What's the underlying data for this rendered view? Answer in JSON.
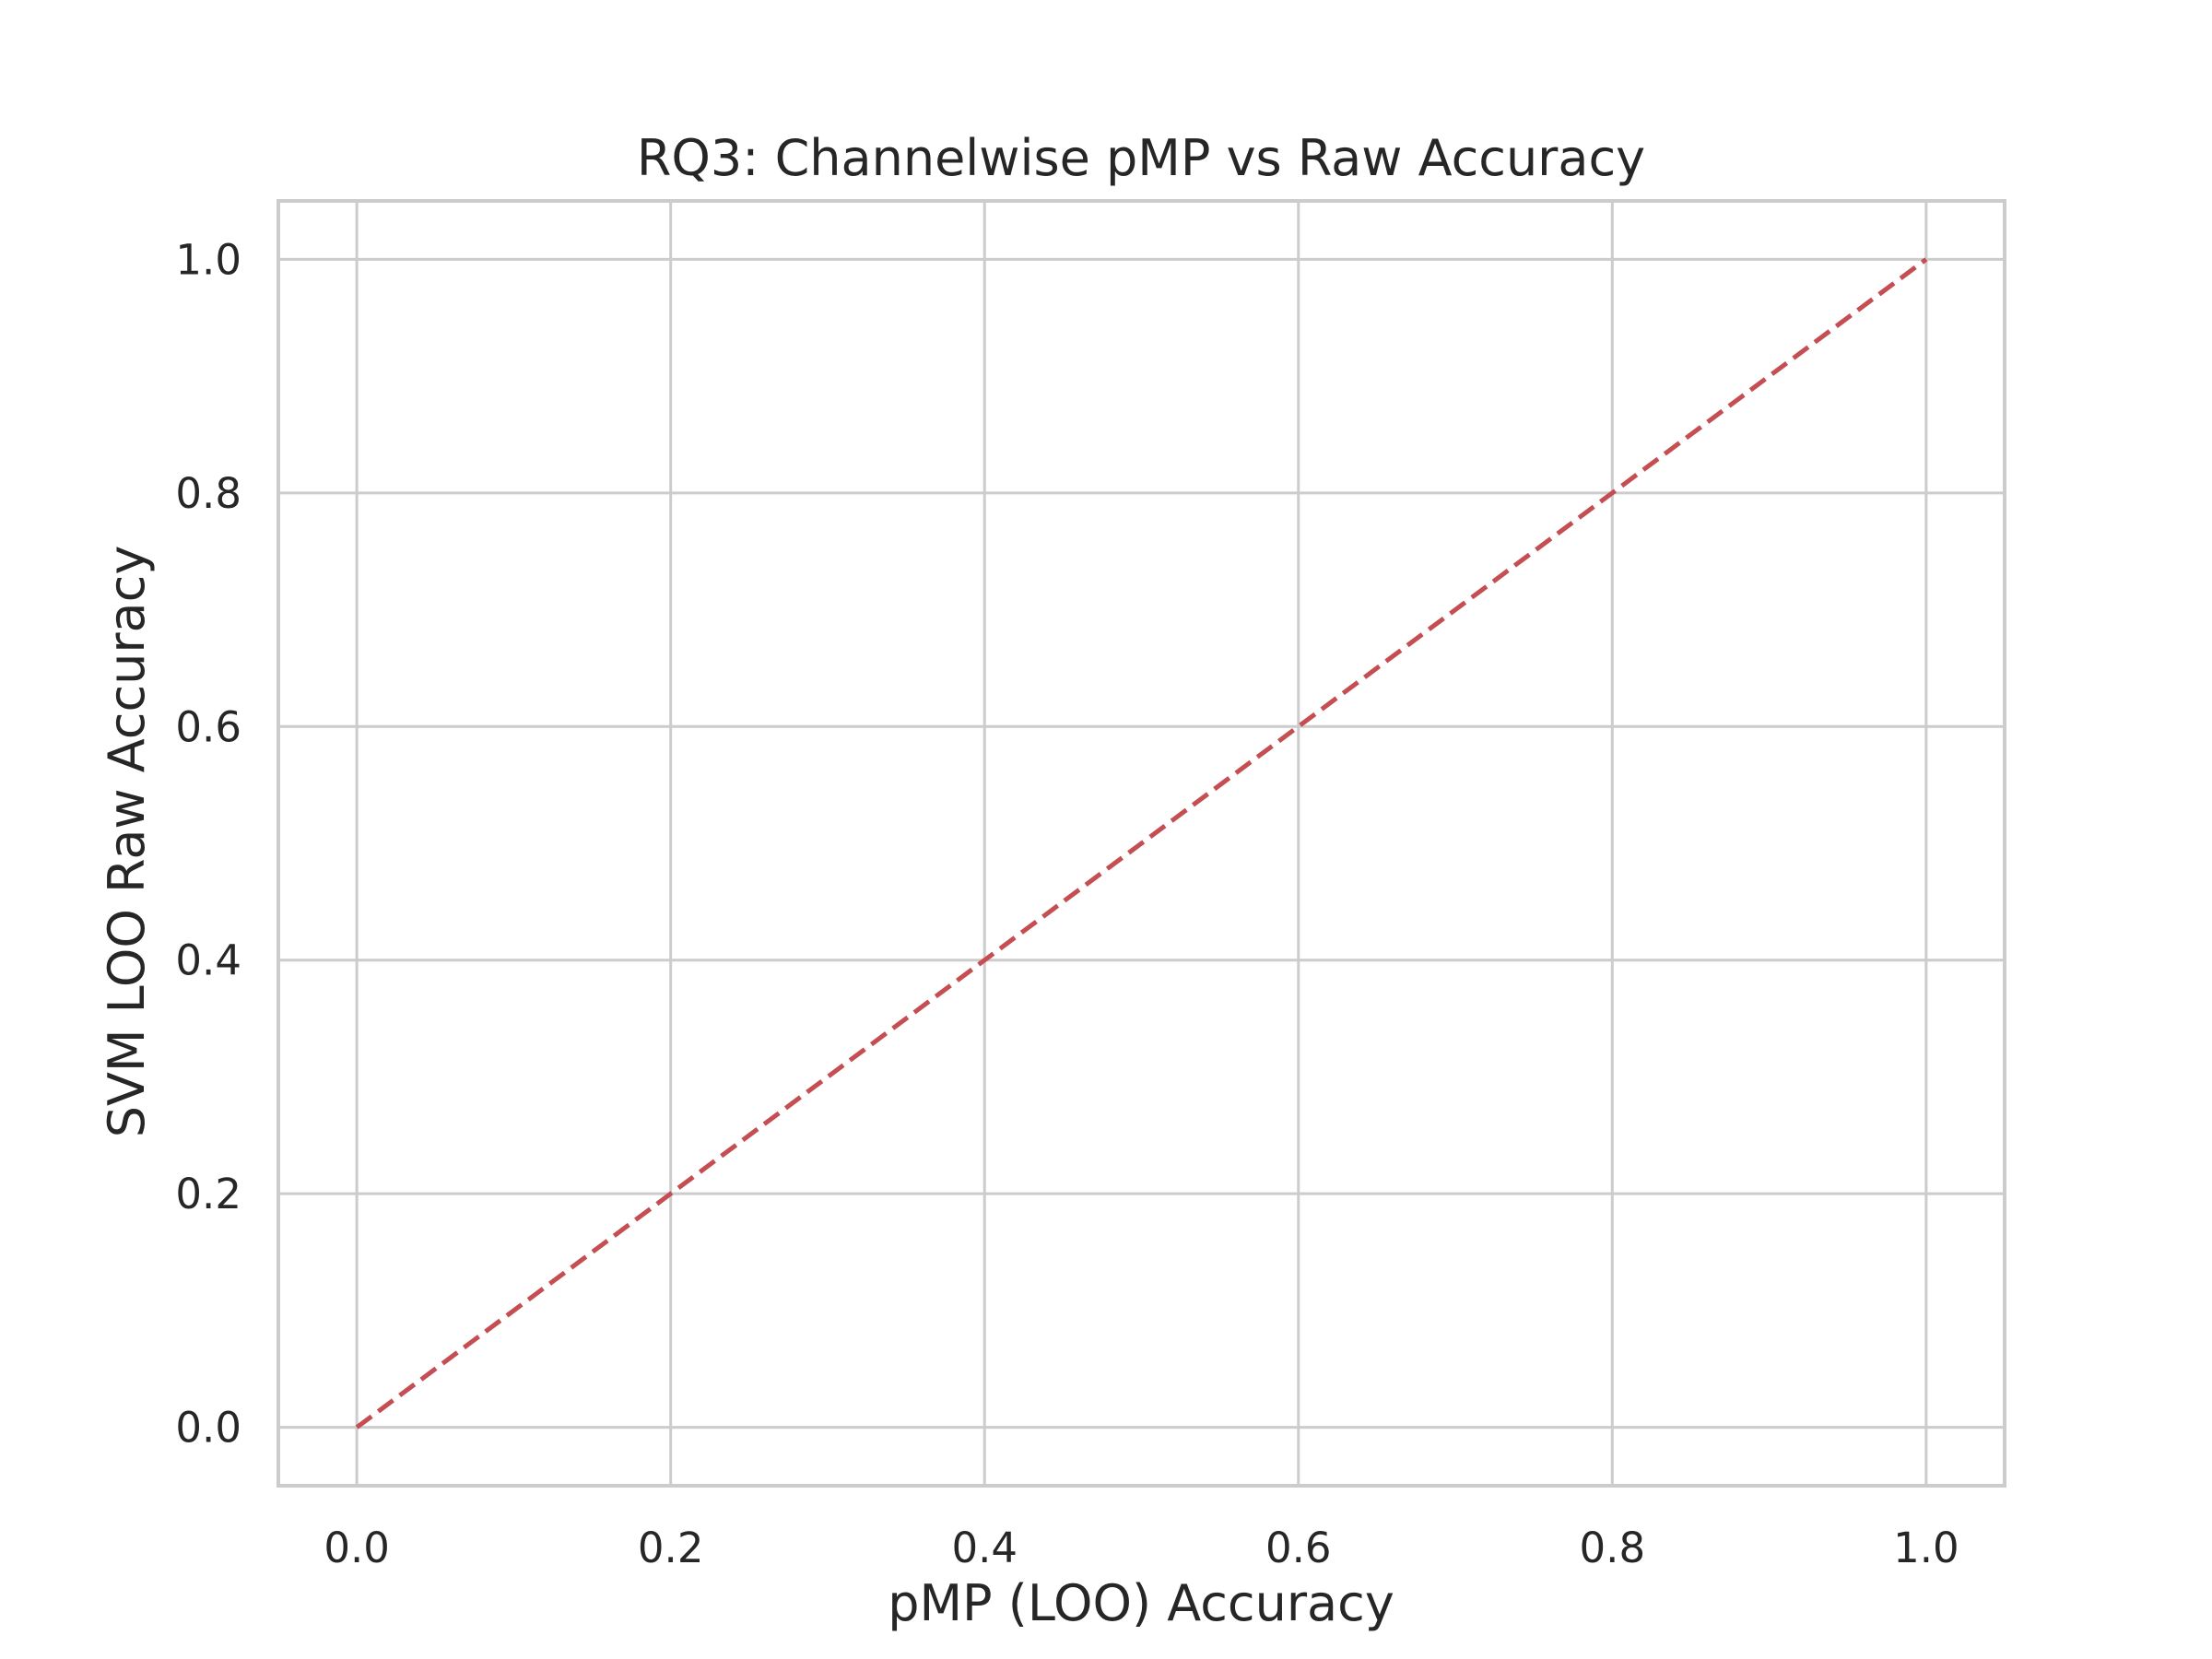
{
  "chart_data": {
    "type": "line",
    "title": "RQ3: Channelwise pMP vs Raw Accuracy",
    "xlabel": "pMP (LOO) Accuracy",
    "ylabel": "SVM LOO Raw Accuracy",
    "xlim": [
      -0.05,
      1.05
    ],
    "ylim": [
      -0.05,
      1.05
    ],
    "xticks": [
      "0.0",
      "0.2",
      "0.4",
      "0.6",
      "0.8",
      "1.0"
    ],
    "yticks": [
      "0.0",
      "0.2",
      "0.4",
      "0.6",
      "0.8",
      "1.0"
    ],
    "grid": true,
    "series": [
      {
        "x": [
          0.0,
          1.0
        ],
        "y": [
          0.0,
          1.0
        ],
        "style": "dashed",
        "color": "#c44e52"
      }
    ]
  }
}
